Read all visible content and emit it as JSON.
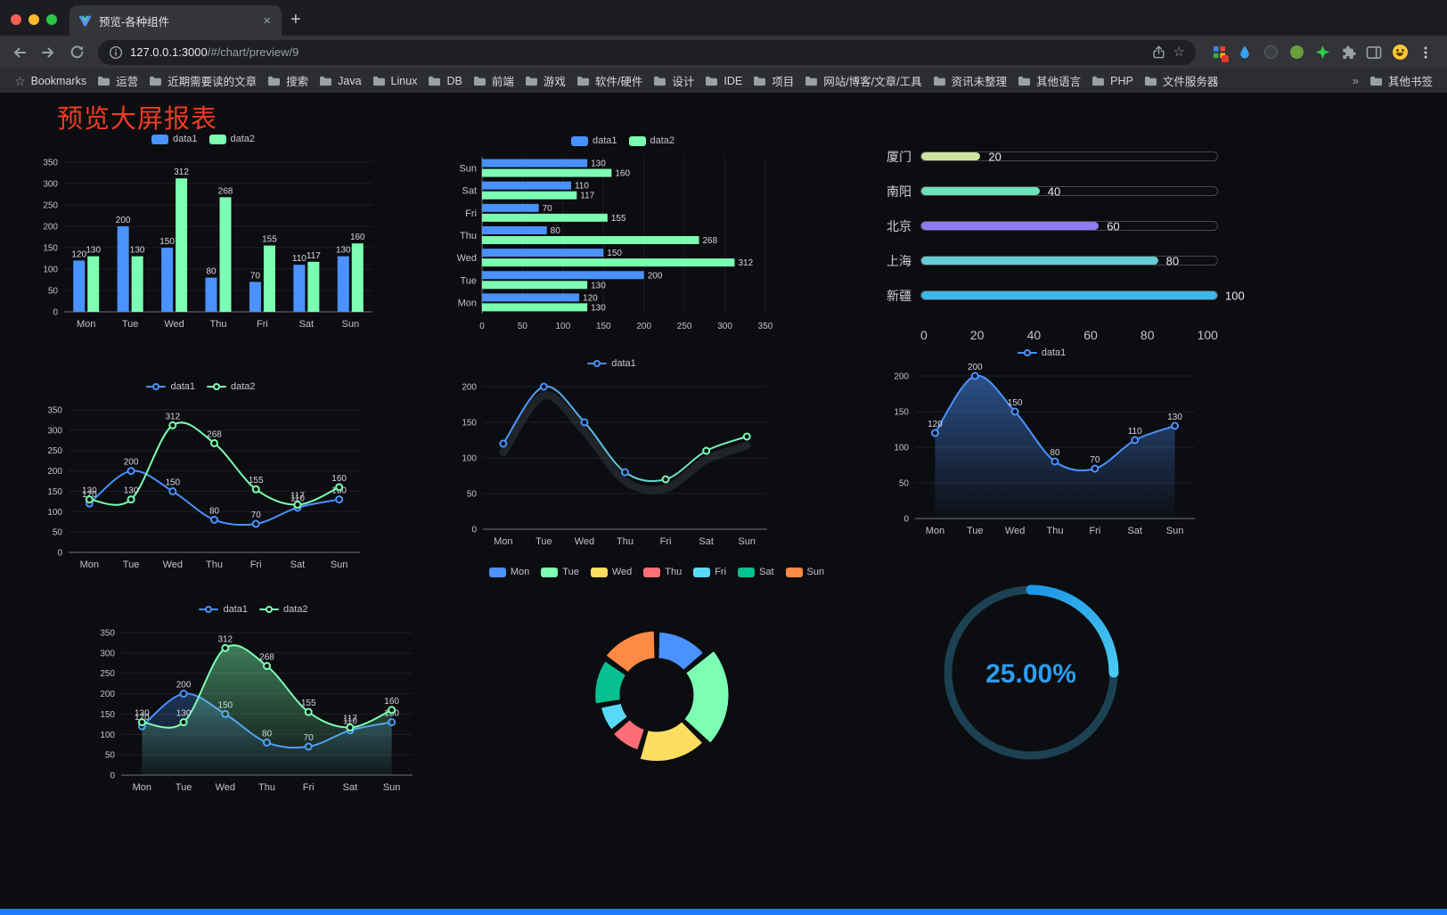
{
  "browser": {
    "tab_title": "预览-各种组件",
    "url_host": "127.0.0.1:3000",
    "url_path": "/#/chart/preview/9",
    "bookmarks_label": "Bookmarks",
    "bookmarks": [
      "运营",
      "近期需要读的文章",
      "搜索",
      "Java",
      "Linux",
      "DB",
      "前端",
      "游戏",
      "软件/硬件",
      "设计",
      "IDE",
      "项目",
      "网站/博客/文章/工具",
      "资讯未整理",
      "其他语言",
      "PHP",
      "文件服务器"
    ],
    "other_bookmarks_label": "其他书签"
  },
  "icons": {
    "close": "×",
    "plus": "+",
    "star": "☆",
    "chevron": "»"
  },
  "page": {
    "title": "预览大屏报表",
    "title_color": "#ef3c24",
    "footer_bar_color": "#1c7dff"
  },
  "chart_data": [
    {
      "id": "bar-grouped",
      "type": "bar",
      "title": "",
      "legend_position": "top",
      "categories": [
        "Mon",
        "Tue",
        "Wed",
        "Thu",
        "Fri",
        "Sat",
        "Sun"
      ],
      "series": [
        {
          "name": "data1",
          "color": "#4992ff",
          "values": [
            120,
            200,
            150,
            80,
            70,
            110,
            130
          ]
        },
        {
          "name": "data2",
          "color": "#7cffb2",
          "values": [
            130,
            130,
            312,
            268,
            155,
            117,
            160
          ]
        }
      ],
      "ylim": [
        0,
        350
      ],
      "ytick_step": 50,
      "grid": true
    },
    {
      "id": "bar-horizontal",
      "type": "bar",
      "orientation": "horizontal",
      "title": "",
      "legend_position": "top",
      "categories": [
        "Mon",
        "Tue",
        "Wed",
        "Thu",
        "Fri",
        "Sat",
        "Sun"
      ],
      "series": [
        {
          "name": "data1",
          "color": "#4992ff",
          "values": [
            120,
            200,
            150,
            80,
            70,
            110,
            130
          ]
        },
        {
          "name": "data2",
          "color": "#7cffb2",
          "values": [
            130,
            130,
            312,
            268,
            155,
            117,
            160
          ]
        }
      ],
      "xlim": [
        0,
        350
      ],
      "xtick_step": 50,
      "grid": true
    },
    {
      "id": "capsule-bars",
      "type": "bar",
      "subtype": "capsule-progress",
      "rows": [
        {
          "label": "厦门",
          "value": 20,
          "color": "#cde39f"
        },
        {
          "label": "南阳",
          "value": 40,
          "color": "#6fe0b8"
        },
        {
          "label": "北京",
          "value": 60,
          "color": "#8d7cf3"
        },
        {
          "label": "上海",
          "value": 80,
          "color": "#63cfd5"
        },
        {
          "label": "新疆",
          "value": 100,
          "color": "#3fb6e8"
        }
      ],
      "xlim": [
        0,
        100
      ],
      "axis_ticks": [
        0,
        20,
        40,
        60,
        80,
        100
      ]
    },
    {
      "id": "line-two-series",
      "type": "line",
      "legend_position": "top",
      "categories": [
        "Mon",
        "Tue",
        "Wed",
        "Thu",
        "Fri",
        "Sat",
        "Sun"
      ],
      "series": [
        {
          "name": "data1",
          "color": "#4992ff",
          "values": [
            120,
            200,
            150,
            80,
            70,
            110,
            130
          ]
        },
        {
          "name": "data2",
          "color": "#7cffb2",
          "values": [
            130,
            130,
            312,
            268,
            155,
            117,
            160
          ]
        }
      ],
      "ylim": [
        0,
        350
      ],
      "ytick_step": 50,
      "labels": true
    },
    {
      "id": "line-gradient",
      "type": "line",
      "legend_position": "top",
      "categories": [
        "Mon",
        "Tue",
        "Wed",
        "Thu",
        "Fri",
        "Sat",
        "Sun"
      ],
      "series": [
        {
          "name": "data1",
          "gradient": [
            "#4992ff",
            "#7cffb2"
          ],
          "shadow": true,
          "values": [
            120,
            200,
            150,
            80,
            70,
            110,
            130
          ]
        }
      ],
      "ylim": [
        0,
        200
      ],
      "ytick_step": 50,
      "labels": false
    },
    {
      "id": "line-area-single",
      "type": "area",
      "legend_position": "top",
      "categories": [
        "Mon",
        "Tue",
        "Wed",
        "Thu",
        "Fri",
        "Sat",
        "Sun"
      ],
      "series": [
        {
          "name": "data1",
          "color": "#4992ff",
          "area": [
            "rgba(73,146,255,0.50)",
            "rgba(73,146,255,0.02)"
          ],
          "values": [
            120,
            200,
            150,
            80,
            70,
            110,
            130
          ]
        }
      ],
      "ylim": [
        0,
        200
      ],
      "ytick_step": 50,
      "labels": true
    },
    {
      "id": "line-area-two",
      "type": "area",
      "legend_position": "top",
      "categories": [
        "Mon",
        "Tue",
        "Wed",
        "Thu",
        "Fri",
        "Sat",
        "Sun"
      ],
      "series": [
        {
          "name": "data1",
          "color": "#4992ff",
          "area": [
            "rgba(73,146,255,0.30)",
            "rgba(73,146,255,0.02)"
          ],
          "values": [
            120,
            200,
            150,
            80,
            70,
            110,
            130
          ]
        },
        {
          "name": "data2",
          "color": "#7cffb2",
          "area": [
            "rgba(124,255,178,0.45)",
            "rgba(124,255,178,0.03)"
          ],
          "values": [
            130,
            130,
            312,
            268,
            155,
            117,
            160
          ]
        }
      ],
      "ylim": [
        0,
        350
      ],
      "ytick_step": 50,
      "labels": true
    },
    {
      "id": "rose-pie",
      "type": "pie",
      "subtype": "rose-donut",
      "legend_position": "top",
      "inner_radius": 40,
      "items": [
        {
          "name": "Mon",
          "value": 120,
          "color": "#4992ff"
        },
        {
          "name": "Tue",
          "value": 200,
          "color": "#7cffb2"
        },
        {
          "name": "Wed",
          "value": 150,
          "color": "#fddd60"
        },
        {
          "name": "Thu",
          "value": 80,
          "color": "#ff6e76"
        },
        {
          "name": "Fri",
          "value": 70,
          "color": "#58d9f9"
        },
        {
          "name": "Sat",
          "value": 110,
          "color": "#05c091"
        },
        {
          "name": "Sun",
          "value": 130,
          "color": "#ff8a45"
        }
      ]
    },
    {
      "id": "progress-ring",
      "type": "pie",
      "subtype": "progress-ring",
      "value": 25,
      "label": "25.00%",
      "colors": [
        "#1d95e8",
        "#49c8f2"
      ],
      "track_color": "#1c4152",
      "text_color": "#2b9df0"
    }
  ]
}
